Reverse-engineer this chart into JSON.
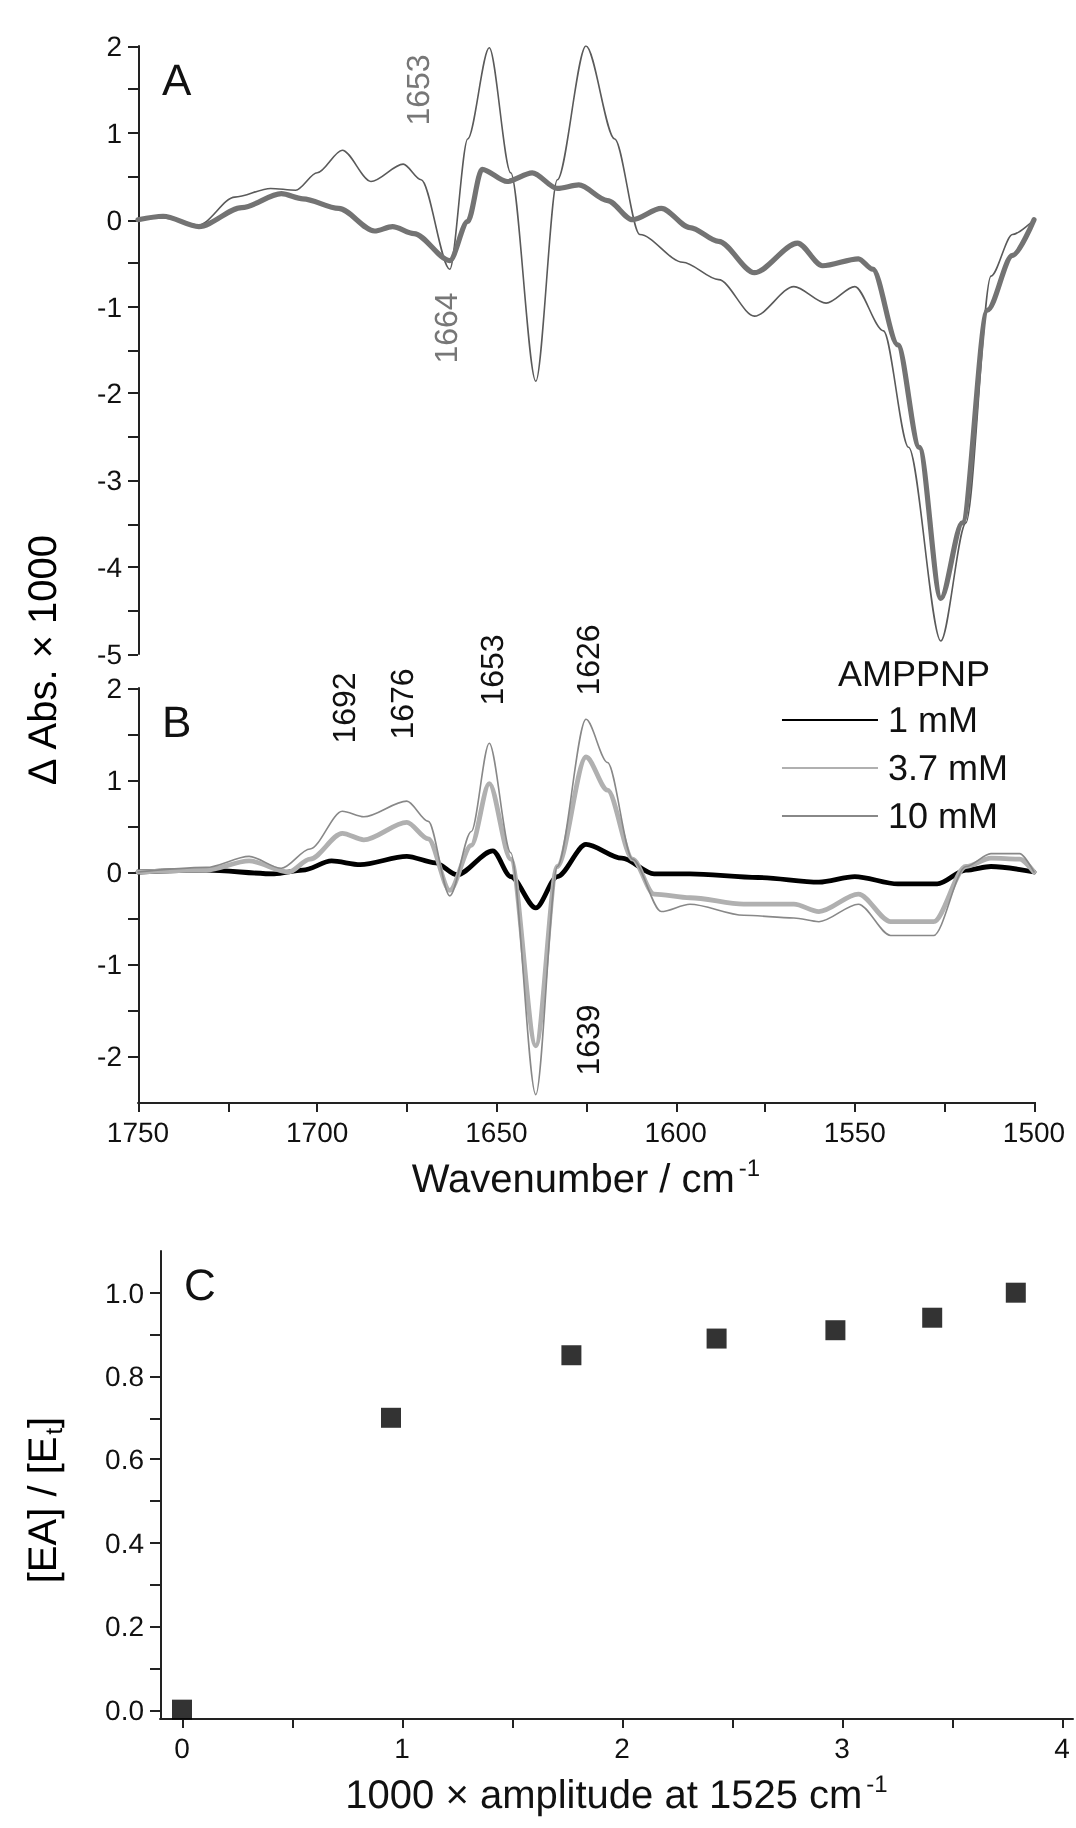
{
  "chart_data": [
    {
      "type": "line",
      "title": "A",
      "ylabel": "Δ Abs. × 1000",
      "xlim": [
        1750,
        1500
      ],
      "ylim": [
        -5,
        2
      ],
      "yticks": [
        -5,
        {
          "value": -4.5,
          "label": null
        },
        -4,
        {
          "value": -3.5,
          "label": null
        },
        -3,
        {
          "value": -2.5,
          "label": null
        },
        -2,
        {
          "value": -1.5,
          "label": null
        },
        -1,
        {
          "value": -0.5,
          "label": null
        },
        0,
        {
          "value": 0.5,
          "label": null
        },
        1,
        {
          "value": 1.5,
          "label": null
        },
        2
      ],
      "tick_labels": "y",
      "grid": false,
      "legend": false,
      "series": [
        {
          "color": "#5a5a5a",
          "x": [
            1750,
            1743,
            1733,
            1723,
            1713,
            1706,
            1700,
            1693,
            1685,
            1676,
            1671,
            1663,
            1658,
            1652,
            1646,
            1639,
            1633,
            1625,
            1617,
            1610,
            1598,
            1588,
            1578,
            1567,
            1558,
            1550,
            1542,
            1535,
            1526,
            1519,
            1512,
            1506,
            1500
          ],
          "values": [
            0,
            0.02,
            -0.06,
            0.26,
            0.36,
            0.34,
            0.54,
            0.8,
            0.44,
            0.64,
            0.46,
            -0.57,
            0.93,
            1.98,
            0.54,
            -1.86,
            0.46,
            2.0,
            0.93,
            -0.17,
            -0.49,
            -0.69,
            -1.11,
            -0.77,
            -0.96,
            -0.77,
            -1.28,
            -2.62,
            -4.85,
            -3.49,
            -0.65,
            -0.17,
            0
          ]
        },
        {
          "color": "#737373",
          "x": [
            1750,
            1743,
            1733,
            1721,
            1710,
            1704,
            1694,
            1684,
            1679,
            1673,
            1663,
            1658,
            1654,
            1647,
            1640,
            1633,
            1627,
            1619,
            1612,
            1604,
            1596,
            1588,
            1578,
            1566,
            1559,
            1549,
            1545,
            1538,
            1532,
            1526,
            1520,
            1513,
            1506,
            1500
          ],
          "values": [
            0,
            0.04,
            -0.08,
            0.14,
            0.3,
            0.24,
            0.13,
            -0.13,
            -0.08,
            -0.16,
            -0.47,
            -0.02,
            0.58,
            0.44,
            0.54,
            0.36,
            0.4,
            0.22,
            0,
            0.13,
            -0.09,
            -0.25,
            -0.61,
            -0.27,
            -0.53,
            -0.45,
            -0.57,
            -1.44,
            -2.62,
            -4.36,
            -3.49,
            -1.04,
            -0.41,
            0
          ]
        }
      ],
      "annotations": [
        "1653",
        "1664"
      ]
    },
    {
      "type": "line",
      "title": "B",
      "xlabel": "Wavenumber / cm$^{-1}$",
      "xlim": [
        1750,
        1500
      ],
      "ylim": [
        -2.5,
        2
      ],
      "xticks": [
        1750,
        {
          "value": 1725,
          "label": null
        },
        1700,
        {
          "value": 1675,
          "label": null
        },
        1650,
        {
          "value": 1625,
          "label": null
        },
        1600,
        {
          "value": 1575,
          "label": null
        },
        1550,
        {
          "value": 1525,
          "label": null
        },
        1500
      ],
      "yticks": [
        -2,
        {
          "value": -1.5,
          "label": null
        },
        -1,
        {
          "value": -0.5,
          "label": null
        },
        0,
        {
          "value": 0.5,
          "label": null
        },
        1,
        {
          "value": 1.5,
          "label": null
        },
        2
      ],
      "grid": false,
      "legend": "top right",
      "legend_title": "AMPPNP",
      "series": [
        {
          "name": "1 mM",
          "color": "#000000",
          "x": [
            1750,
            1731,
            1712,
            1704,
            1696,
            1688,
            1675,
            1667,
            1661,
            1651,
            1646,
            1639,
            1633,
            1625,
            1615,
            1606,
            1596,
            1577,
            1560,
            1550,
            1538,
            1527,
            1519,
            1512,
            1500
          ],
          "values": [
            0,
            0.02,
            -0.02,
            0.02,
            0.12,
            0.08,
            0.17,
            0.1,
            -0.03,
            0.23,
            -0.05,
            -0.39,
            -0.05,
            0.3,
            0.15,
            -0.02,
            -0.02,
            -0.06,
            -0.11,
            -0.05,
            -0.13,
            -0.13,
            0.02,
            0.06,
            0
          ]
        },
        {
          "name": "3.7 mM",
          "color": "#b0b0b0",
          "x": [
            1750,
            1731,
            1719,
            1708,
            1702,
            1693,
            1687,
            1675,
            1669,
            1663,
            1657,
            1652,
            1646,
            1639,
            1633,
            1625,
            1619,
            1612,
            1606,
            1596,
            1581,
            1567,
            1560,
            1549,
            1540,
            1528,
            1519,
            1512,
            1504,
            1500
          ],
          "values": [
            0,
            0.02,
            0.12,
            0,
            0.14,
            0.42,
            0.35,
            0.54,
            0.36,
            -0.2,
            0.29,
            0.96,
            0.14,
            -1.89,
            0.06,
            1.25,
            0.89,
            0.14,
            -0.24,
            -0.28,
            -0.35,
            -0.35,
            -0.43,
            -0.24,
            -0.54,
            -0.54,
            0.06,
            0.15,
            0.14,
            0
          ]
        },
        {
          "name": "10 mM",
          "color": "#888888",
          "x": [
            1750,
            1731,
            1719,
            1710,
            1702,
            1693,
            1687,
            1675,
            1669,
            1663,
            1657,
            1652,
            1646,
            1639,
            1633,
            1625,
            1619,
            1612,
            1604,
            1596,
            1581,
            1567,
            1560,
            1549,
            1540,
            1528,
            1519,
            1512,
            1504,
            1500
          ],
          "values": [
            0,
            0.05,
            0.17,
            0.04,
            0.25,
            0.66,
            0.6,
            0.77,
            0.55,
            -0.26,
            0.44,
            1.4,
            0.21,
            -2.42,
            0.06,
            1.66,
            1.19,
            0.14,
            -0.43,
            -0.35,
            -0.47,
            -0.5,
            -0.54,
            -0.35,
            -0.69,
            -0.69,
            0.06,
            0.2,
            0.2,
            0
          ]
        }
      ],
      "annotations": [
        "1692",
        "1676",
        "1653",
        "1626",
        "1639"
      ]
    },
    {
      "type": "scatter",
      "title": "C",
      "xlabel": "1000 × amplitude at 1525 cm$^{-1}$",
      "ylabel": "[EA] / [E$_{t}$]",
      "xlim": [
        -0.1,
        4.05
      ],
      "ylim": [
        -0.02,
        1.1
      ],
      "xticks": [
        0,
        {
          "value": 0.5,
          "label": null
        },
        1,
        {
          "value": 1.5,
          "label": null
        },
        2,
        {
          "value": 2.5,
          "label": null
        },
        3,
        {
          "value": 3.5,
          "label": null
        },
        4
      ],
      "yticks": [
        {
          "value": 0,
          "label": "0.0"
        },
        {
          "value": 0.1,
          "label": null
        },
        {
          "value": 0.2,
          "label": "0.2"
        },
        {
          "value": 0.3,
          "label": null
        },
        {
          "value": 0.4,
          "label": "0.4"
        },
        {
          "value": 0.5,
          "label": null
        },
        {
          "value": 0.6,
          "label": "0.6"
        },
        {
          "value": 0.7,
          "label": null
        },
        {
          "value": 0.8,
          "label": "0.8"
        },
        {
          "value": 0.9,
          "label": null
        },
        {
          "value": 1.0,
          "label": "1.0"
        }
      ],
      "grid": false,
      "legend": false,
      "marker": "square",
      "x": [
        0,
        0.95,
        1.77,
        2.43,
        2.97,
        3.41,
        3.79
      ],
      "values": [
        0,
        0.7,
        0.85,
        0.89,
        0.91,
        0.94,
        1.0
      ],
      "color": "#000000"
    }
  ]
}
